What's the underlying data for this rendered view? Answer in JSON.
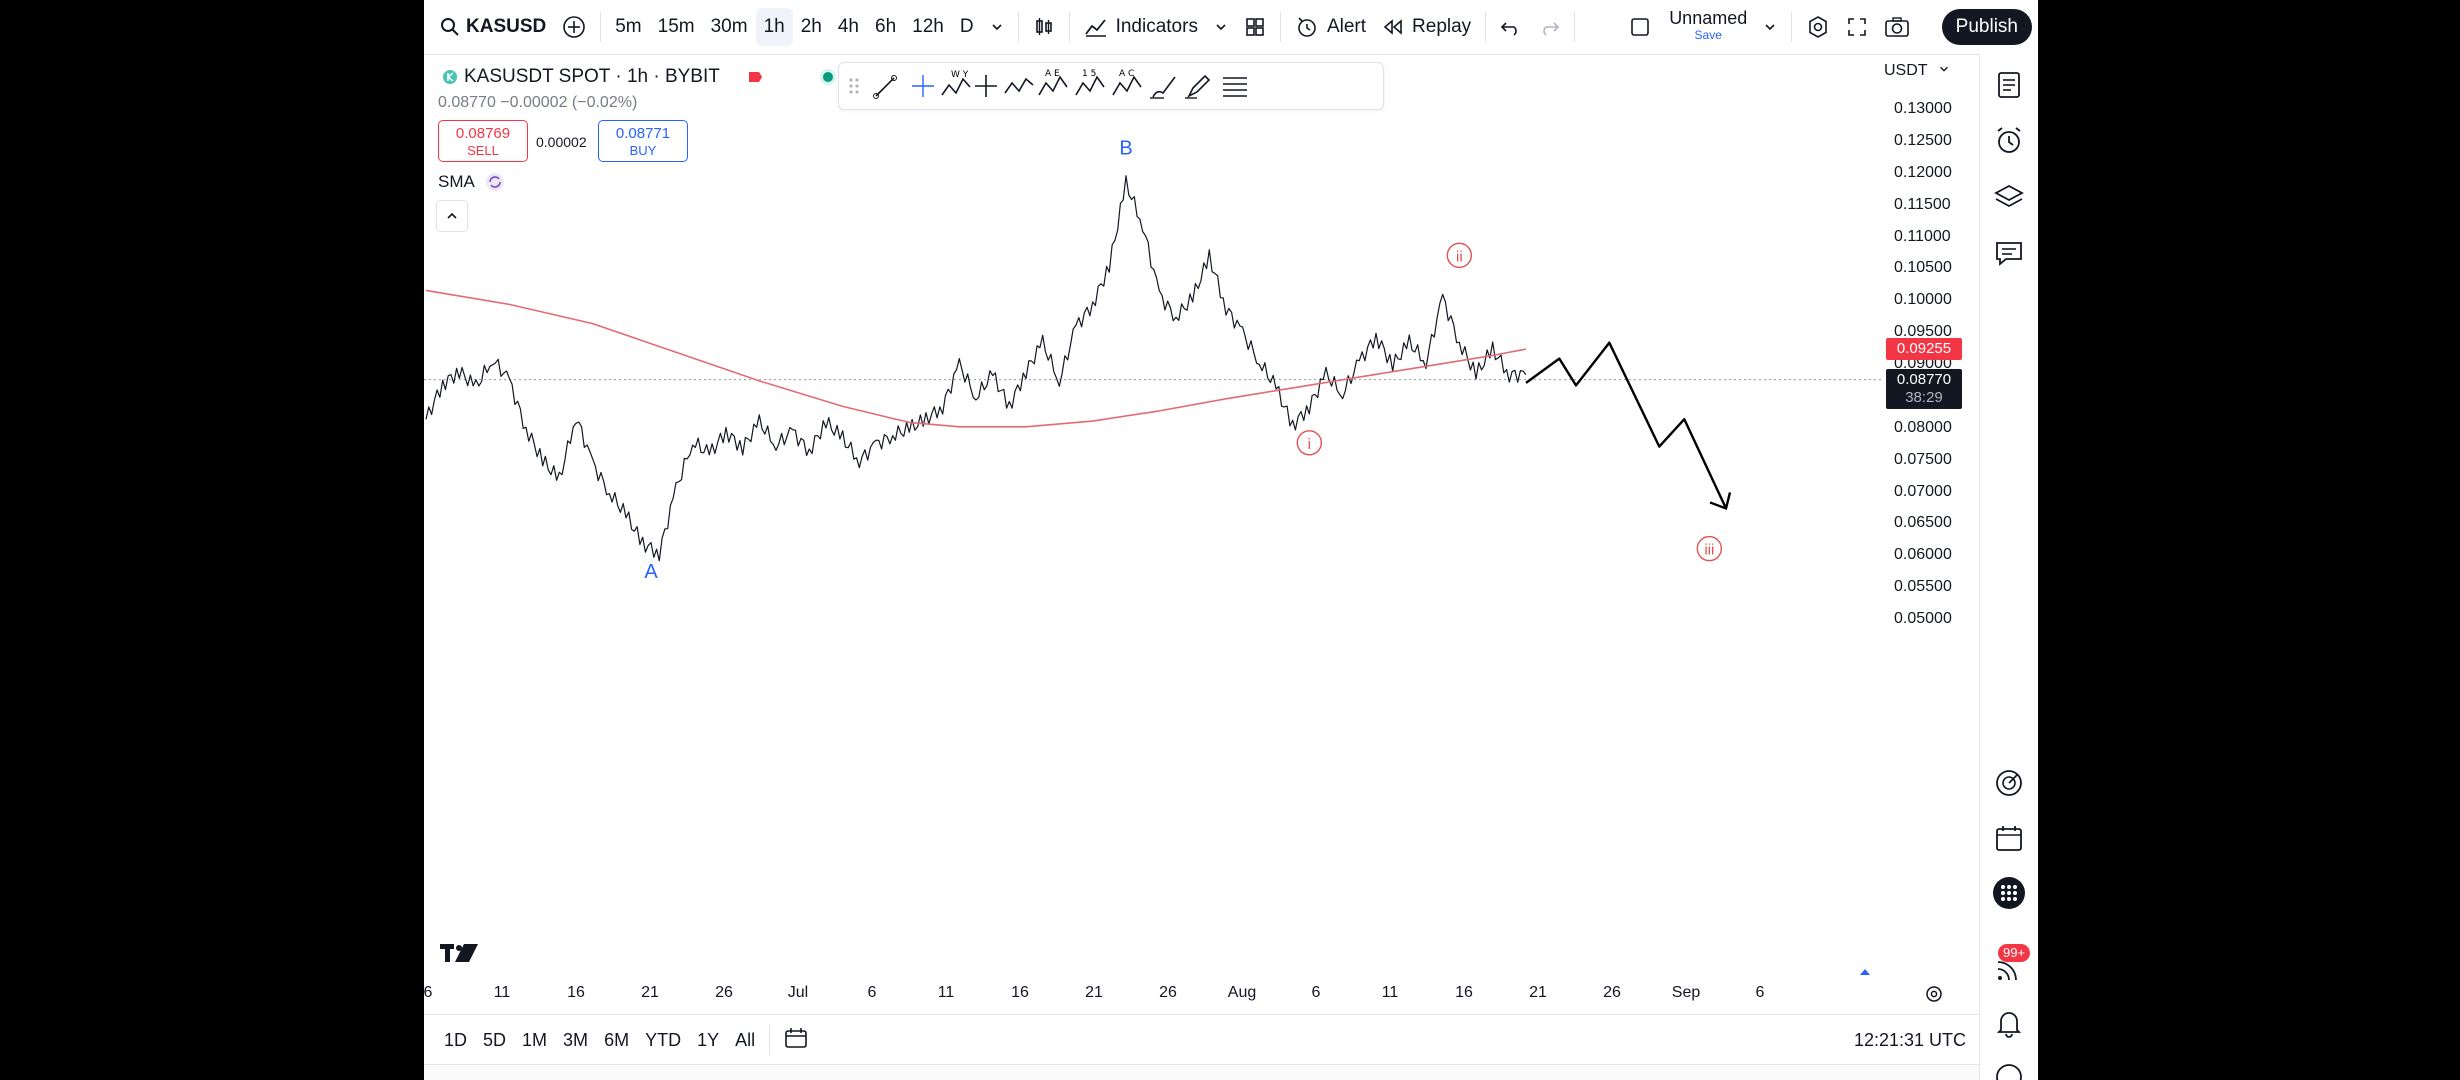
{
  "toolbar": {
    "symbol": "KASUSD",
    "intervals": [
      "5m",
      "15m",
      "30m",
      "1h",
      "2h",
      "4h",
      "6h",
      "12h",
      "D"
    ],
    "active_interval": "1h",
    "indicators_label": "Indicators",
    "alert_label": "Alert",
    "replay_label": "Replay",
    "layout_name": "Unnamed",
    "layout_save": "Save",
    "publish_label": "Publish"
  },
  "legend": {
    "title": "KASUSDT SPOT · 1h · BYBIT",
    "price_line": "0.08770  −0.00002 (−0.02%)",
    "sell_price": "0.08769",
    "sell_label": "SELL",
    "spread": "0.00002",
    "buy_price": "0.08771",
    "buy_label": "BUY",
    "indicator": "SMA"
  },
  "currency": "USDT",
  "price_labels": {
    "sma_value": "0.09255",
    "last_price": "0.08770",
    "countdown": "38:29"
  },
  "bottom": {
    "ranges": [
      "1D",
      "5D",
      "1M",
      "3M",
      "6M",
      "YTD",
      "1Y",
      "All"
    ],
    "clock": "12:21:31 UTC"
  },
  "sidebar": {
    "notification_badge": "99+"
  },
  "chart_data": {
    "type": "line",
    "title": "",
    "ylabel": "",
    "xlabel": "",
    "y_ticks": [
      "0.13000",
      "0.12500",
      "0.12000",
      "0.11500",
      "0.11000",
      "0.10500",
      "0.10000",
      "0.09500",
      "0.09000",
      "0.08500",
      "0.08000",
      "0.07500",
      "0.07000",
      "0.06500",
      "0.06000",
      "0.05500",
      "0.05000"
    ],
    "ylim": [
      0.0465,
      0.1345
    ],
    "x_ticks": [
      "6",
      "11",
      "16",
      "21",
      "26",
      "Jul",
      "6",
      "11",
      "16",
      "21",
      "26",
      "Aug",
      "6",
      "11",
      "16",
      "21",
      "26",
      "Sep",
      "6"
    ],
    "series": [
      {
        "color": "#131722",
        "points": [
          [
            0,
            0.0815
          ],
          [
            1,
            0.087
          ],
          [
            2,
            0.089
          ],
          [
            3,
            0.0865
          ],
          [
            4,
            0.091
          ],
          [
            5,
            0.0875
          ],
          [
            6,
            0.08
          ],
          [
            7,
            0.075
          ],
          [
            8,
            0.072
          ],
          [
            9,
            0.082
          ],
          [
            10,
            0.0745
          ],
          [
            11,
            0.07
          ],
          [
            12,
            0.0665
          ],
          [
            13,
            0.062
          ],
          [
            14,
            0.0605
          ],
          [
            15,
            0.0705
          ],
          [
            16,
            0.078
          ],
          [
            17,
            0.076
          ],
          [
            18,
            0.0795
          ],
          [
            19,
            0.077
          ],
          [
            20,
            0.081
          ],
          [
            21,
            0.0775
          ],
          [
            22,
            0.0795
          ],
          [
            23,
            0.0765
          ],
          [
            24,
            0.081
          ],
          [
            25,
            0.0785
          ],
          [
            26,
            0.075
          ],
          [
            27,
            0.0775
          ],
          [
            28,
            0.079
          ],
          [
            29,
            0.08
          ],
          [
            30,
            0.0815
          ],
          [
            31,
            0.0835
          ],
          [
            32,
            0.09
          ],
          [
            33,
            0.085
          ],
          [
            34,
            0.0885
          ],
          [
            35,
            0.0835
          ],
          [
            36,
            0.089
          ],
          [
            37,
            0.0935
          ],
          [
            38,
            0.0875
          ],
          [
            39,
            0.096
          ],
          [
            40,
            0.0995
          ],
          [
            41,
            0.1055
          ],
          [
            42,
            0.1185
          ],
          [
            43,
            0.112
          ],
          [
            44,
            0.101
          ],
          [
            45,
            0.0975
          ],
          [
            46,
            0.1005
          ],
          [
            47,
            0.107
          ],
          [
            48,
            0.099
          ],
          [
            49,
            0.095
          ],
          [
            50,
            0.0905
          ],
          [
            51,
            0.0865
          ],
          [
            52,
            0.0805
          ],
          [
            53,
            0.0835
          ],
          [
            54,
            0.0885
          ],
          [
            55,
            0.0855
          ],
          [
            56,
            0.0905
          ],
          [
            57,
            0.0945
          ],
          [
            58,
            0.09
          ],
          [
            59,
            0.0935
          ],
          [
            60,
            0.0905
          ],
          [
            61,
            0.1005
          ],
          [
            62,
            0.0935
          ],
          [
            63,
            0.0885
          ],
          [
            64,
            0.0925
          ],
          [
            65,
            0.0885
          ],
          [
            66,
            0.0885
          ]
        ]
      },
      {
        "name": "SMA",
        "color": "#e06c75",
        "points": [
          [
            0,
            0.1017
          ],
          [
            5,
            0.0995
          ],
          [
            10,
            0.0965
          ],
          [
            15,
            0.092
          ],
          [
            20,
            0.0875
          ],
          [
            25,
            0.0835
          ],
          [
            29,
            0.081
          ],
          [
            32,
            0.0803
          ],
          [
            36,
            0.0803
          ],
          [
            40,
            0.0812
          ],
          [
            44,
            0.0828
          ],
          [
            48,
            0.0847
          ],
          [
            52,
            0.0864
          ],
          [
            56,
            0.0881
          ],
          [
            60,
            0.0898
          ],
          [
            64,
            0.0915
          ],
          [
            66,
            0.0925
          ]
        ]
      },
      {
        "name": "projection",
        "color": "#000000",
        "points": [
          [
            66,
            0.0872
          ],
          [
            68,
            0.091
          ],
          [
            69,
            0.0868
          ],
          [
            71,
            0.0935
          ],
          [
            74,
            0.0772
          ],
          [
            75.5,
            0.0815
          ],
          [
            78,
            0.0675
          ]
        ]
      }
    ],
    "annotations": [
      {
        "text": "A",
        "x": 13.5,
        "y": 0.0575,
        "color": "#2962ff"
      },
      {
        "text": "B",
        "x": 42,
        "y": 0.124,
        "color": "#2962ff"
      },
      {
        "text": "i",
        "x": 53,
        "y": 0.0778,
        "color": "#e05252",
        "circled": true
      },
      {
        "text": "ii",
        "x": 62,
        "y": 0.1072,
        "color": "#e05252",
        "circled": true
      },
      {
        "text": "iii",
        "x": 77,
        "y": 0.0612,
        "color": "#e05252",
        "circled": true
      }
    ]
  }
}
